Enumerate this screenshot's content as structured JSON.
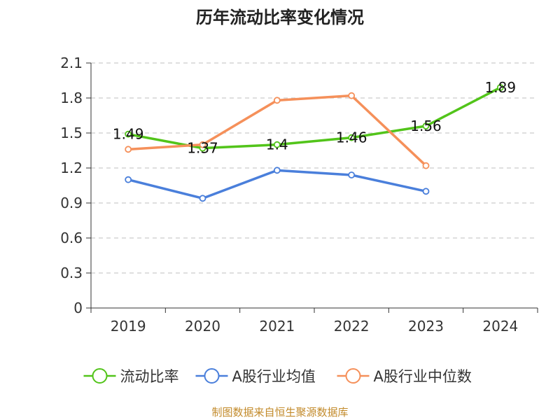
{
  "source_note": "制图数据来自恒生聚源数据库",
  "colors": {
    "grid": "#cccccc",
    "axis": "#333333"
  },
  "chart_data": {
    "type": "line",
    "title": "历年流动比率变化情况",
    "xlabel": "",
    "ylabel": "",
    "categories": [
      "2019",
      "2020",
      "2021",
      "2022",
      "2023",
      "2024"
    ],
    "ylim": [
      0,
      2.1
    ],
    "yticks": [
      "0",
      "0.3",
      "0.6",
      "0.9",
      "1.2",
      "1.5",
      "1.8",
      "2.1"
    ],
    "grid": true,
    "legend_position": "bottom",
    "series": [
      {
        "name": "流动比率",
        "color": "#52c41a",
        "values": [
          1.49,
          1.37,
          1.4,
          1.46,
          1.56,
          1.89
        ],
        "labels": [
          "1.49",
          "1.37",
          "1.4",
          "1.46",
          "1.56",
          "1.89"
        ],
        "show_labels": true
      },
      {
        "name": "A股行业均值",
        "color": "#4a7fdb",
        "values": [
          1.1,
          0.94,
          1.18,
          1.14,
          1.0,
          null
        ],
        "show_labels": false
      },
      {
        "name": "A股行业中位数",
        "color": "#f5905a",
        "values": [
          1.36,
          1.4,
          1.78,
          1.82,
          1.22,
          null
        ],
        "show_labels": false
      }
    ]
  }
}
